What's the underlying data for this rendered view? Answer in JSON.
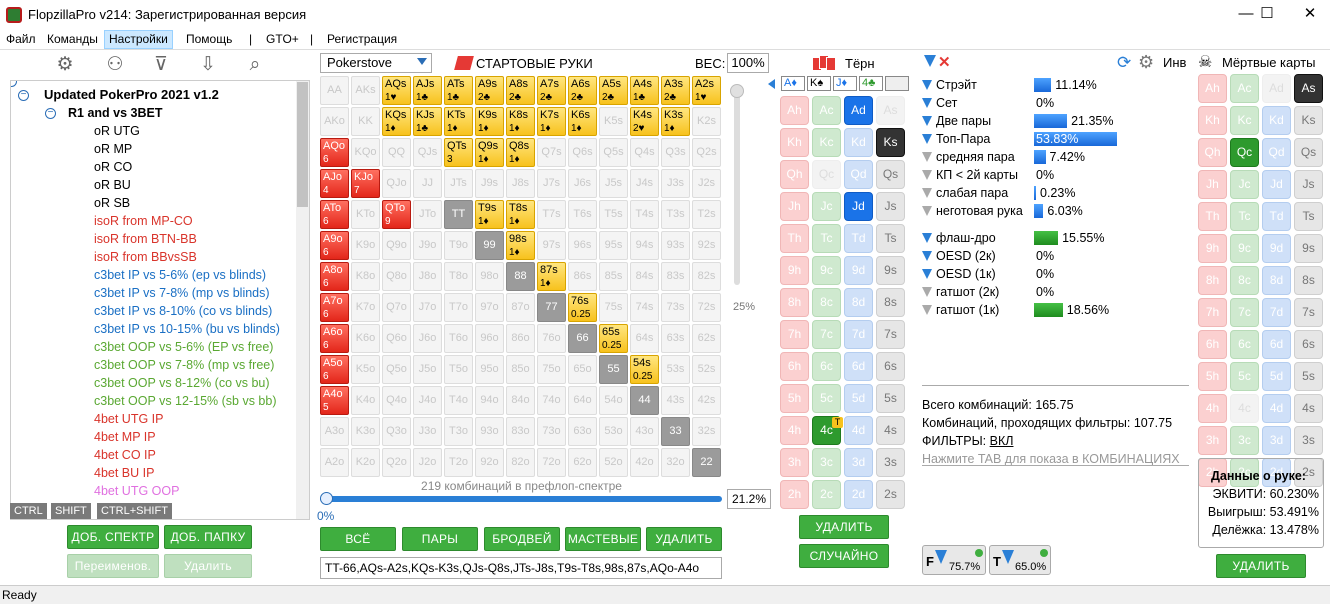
{
  "window": {
    "title": "FlopzillaPro v214: Зарегистрированная версия",
    "min": "—",
    "max": "☐",
    "close": "✕"
  },
  "menu": [
    "Файл",
    "Команды",
    "Настройки",
    "Помощь",
    "|",
    "GTO+",
    "|",
    "Регистрация"
  ],
  "tree": {
    "root": "Updated PokerPro 2021 v1.2",
    "folder": "R1 and vs 3BET",
    "items": [
      {
        "label": "oR UTG",
        "color": "#000"
      },
      {
        "label": "oR MP",
        "color": "#000"
      },
      {
        "label": "oR CO",
        "color": "#000"
      },
      {
        "label": "oR BU",
        "color": "#000"
      },
      {
        "label": "oR SB",
        "color": "#000"
      },
      {
        "label": "isoR from MP-CO",
        "color": "#d9342b"
      },
      {
        "label": "isoR from BTN-BB",
        "color": "#d9342b"
      },
      {
        "label": "isoR from BBvsSB",
        "color": "#d9342b"
      },
      {
        "label": "c3bet IP vs 5-6% (ep vs blinds)",
        "color": "#1a6fc4"
      },
      {
        "label": "c3bet IP vs 7-8% (mp vs blinds)",
        "color": "#1a6fc4"
      },
      {
        "label": "c3bet IP vs 8-10% (co vs blinds)",
        "color": "#1a6fc4"
      },
      {
        "label": "c3bet IP vs 10-15% (bu vs blinds)",
        "color": "#1a6fc4"
      },
      {
        "label": "c3bet OOP vs 5-6% (EP vs free)",
        "color": "#5aa832"
      },
      {
        "label": "c3bet OOP vs 7-8% (mp vs free)",
        "color": "#5aa832"
      },
      {
        "label": "c3bet OOP vs 8-12% (co vs bu)",
        "color": "#5aa832"
      },
      {
        "label": "c3bet OOP vs 12-15% (sb vs bb)",
        "color": "#5aa832"
      },
      {
        "label": "4bet UTG IP",
        "color": "#d9342b"
      },
      {
        "label": "4bet MP IP",
        "color": "#d9342b"
      },
      {
        "label": "4bet CO IP",
        "color": "#d9342b"
      },
      {
        "label": "4bet BU IP",
        "color": "#d9342b"
      },
      {
        "label": "4bet UTG OOP",
        "color": "#e070e0"
      }
    ]
  },
  "keytabs": [
    "CTRL",
    "SHIFT",
    "CTRL+SHIFT"
  ],
  "left_buttons": {
    "add_range": "ДОБ. СПЕКТР",
    "add_folder": "ДОБ. ПАПКУ",
    "rename": "Переименов.",
    "delete": "Удалить"
  },
  "room": "Pokerstove",
  "start_hands": "СТАРТОВЫЕ РУКИ",
  "weight_label": "ВЕС:",
  "weight": "100%",
  "vslider_val": "25%",
  "combos_text": "219 комбинаций в префлоп-спектре",
  "hslider_min": "0%",
  "range_pct": "21.2%",
  "range_buttons": [
    "ВСЁ",
    "ПАРЫ",
    "БРОДВЕЙ",
    "МАСТЕВЫЕ",
    "УДАЛИТЬ"
  ],
  "range_text": "TT-66,AQs-A2s,KQs-K3s,QJs-Q8s,JTs-J8s,T9s-T8s,98s,87s,AQo-A4o",
  "matrix": {
    "ranks": [
      "A",
      "K",
      "Q",
      "J",
      "T",
      "9",
      "8",
      "7",
      "6",
      "5",
      "4",
      "3",
      "2"
    ],
    "active": {
      "AQs": [
        "y",
        "1♥"
      ],
      "AJs": [
        "y",
        "1♣"
      ],
      "ATs": [
        "y",
        "1♣"
      ],
      "A9s": [
        "y",
        "2♣"
      ],
      "A8s": [
        "y",
        "2♣"
      ],
      "A7s": [
        "y",
        "2♣"
      ],
      "A6s": [
        "y",
        "2♣"
      ],
      "A5s": [
        "y",
        "2♣"
      ],
      "A4s": [
        "y",
        "1♣"
      ],
      "A3s": [
        "y",
        "2♣"
      ],
      "A2s": [
        "y",
        "1♥"
      ],
      "KQs": [
        "y",
        "1♦"
      ],
      "KJs": [
        "y",
        "1♣"
      ],
      "KTs": [
        "y",
        "1♦"
      ],
      "K9s": [
        "y",
        "1♦"
      ],
      "K8s": [
        "y",
        "1♦"
      ],
      "K7s": [
        "y",
        "1♦"
      ],
      "K6s": [
        "y",
        "1♦"
      ],
      "K4s": [
        "y",
        "2♥"
      ],
      "K3s": [
        "y",
        "1♦"
      ],
      "QTs": [
        "y",
        "3"
      ],
      "Q9s": [
        "y",
        "1♦"
      ],
      "Q8s": [
        "y",
        "1♦"
      ],
      "T9s": [
        "y",
        "1♦"
      ],
      "T8s": [
        "y",
        "1♦"
      ],
      "98s": [
        "y",
        "1♦"
      ],
      "87s": [
        "y",
        "1♦"
      ],
      "76s": [
        "y",
        "0.25"
      ],
      "65s": [
        "y",
        "0.25"
      ],
      "54s": [
        "y",
        "0.25"
      ],
      "AQo": [
        "r",
        "6"
      ],
      "AJo": [
        "r",
        "4"
      ],
      "ATo": [
        "r",
        "6"
      ],
      "A9o": [
        "r",
        "6"
      ],
      "A8o": [
        "r",
        "6"
      ],
      "A7o": [
        "r",
        "6"
      ],
      "A6o": [
        "r",
        "6"
      ],
      "A5o": [
        "r",
        "6"
      ],
      "A4o": [
        "r",
        "5"
      ],
      "KJo": [
        "r",
        "7"
      ],
      "QTo": [
        "r",
        "9"
      ],
      "TT": [
        "g",
        ""
      ],
      "99": [
        "g",
        ""
      ],
      "88": [
        "g",
        ""
      ],
      "77": [
        "g",
        ""
      ],
      "66": [
        "g",
        ""
      ],
      "55": [
        "g",
        ""
      ],
      "44": [
        "g",
        ""
      ],
      "33": [
        "g",
        ""
      ],
      "22": [
        "g",
        ""
      ]
    }
  },
  "turn": {
    "label": "Тёрн",
    "suits": [
      "A♦",
      "K♠",
      "J♦",
      "4♣",
      ""
    ],
    "delete": "УДАЛИТЬ",
    "random": "СЛУЧАЙНО",
    "badge_4c": "T"
  },
  "stats": {
    "made": [
      {
        "label": "Стрэйт",
        "val": "11.14%",
        "pct": 11.14,
        "f": "b"
      },
      {
        "label": "Сет",
        "val": "0%",
        "pct": 0,
        "f": "b"
      },
      {
        "label": "Две пары",
        "val": "21.35%",
        "pct": 21.35,
        "f": "b"
      },
      {
        "label": "Топ-Пара",
        "val": "53.83%",
        "pct": 53.83,
        "f": "b"
      },
      {
        "label": "средняя пара",
        "val": "7.42%",
        "pct": 7.42,
        "f": "g"
      },
      {
        "label": "КП < 2й карты",
        "val": "0%",
        "pct": 0,
        "f": "g"
      },
      {
        "label": "слабая пара",
        "val": "0.23%",
        "pct": 0.23,
        "f": "g"
      },
      {
        "label": "неготовая рука",
        "val": "6.03%",
        "pct": 6.03,
        "f": "g"
      }
    ],
    "draws": [
      {
        "label": "флаш-дро",
        "val": "15.55%",
        "pct": 15.55,
        "f": "b"
      },
      {
        "label": "OESD (2к)",
        "val": "0%",
        "pct": 0,
        "f": "b"
      },
      {
        "label": "OESD (1к)",
        "val": "0%",
        "pct": 0,
        "f": "b"
      },
      {
        "label": "гатшот (2к)",
        "val": "0%",
        "pct": 0,
        "f": "g"
      },
      {
        "label": "гатшот (1к)",
        "val": "18.56%",
        "pct": 18.56,
        "f": "g"
      }
    ],
    "total": "Всего комбинаций: 165.75",
    "passing": "Комбинаций, проходящих фильтры: 107.75",
    "filters_label": "ФИЛЬТРЫ:",
    "filters_val": "ВКЛ",
    "tab_hint": "Нажмите TAB для показа в КОМБИНАЦИЯХ",
    "pill_f": "75.7%",
    "pill_t": "65.0%"
  },
  "inv": "Инв",
  "dead": {
    "label": "Мёртвые карты",
    "delete": "УДАЛИТЬ"
  },
  "hand_data": {
    "title": "Данные о руке:",
    "equity": "ЭКВИТИ: 60.230%",
    "win": "Выигрыш: 53.491%",
    "tie": "Делёжка: 13.478%"
  },
  "status": "Ready"
}
